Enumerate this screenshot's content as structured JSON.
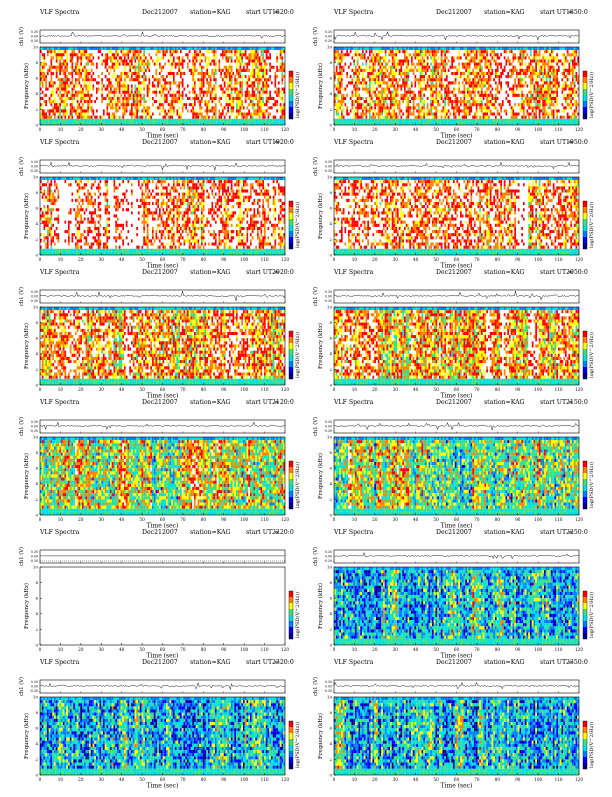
{
  "common": {
    "title": "VLF Spectra",
    "date": "Dec212007",
    "station": "station=KAG",
    "start_prefix": "start  UT =",
    "xlabel": "Time  (sec)",
    "ylabel_freq": "Frequency  (kHz)",
    "ylabel_ch": "ch1 (V)",
    "colorbar_label": "log(PSD(V^2/Hz))",
    "x_ticks": [
      0,
      10,
      20,
      30,
      40,
      50,
      60,
      70,
      80,
      90,
      100,
      110,
      120
    ],
    "y_ticks": [
      0,
      2,
      4,
      6,
      8,
      10
    ],
    "ch_ticks": [
      "0.30",
      "0.00",
      "-0.30"
    ],
    "xlim": [
      0,
      120
    ],
    "ylim": [
      0,
      10
    ],
    "colormap": [
      "#000080",
      "#0000ff",
      "#0080ff",
      "#00e0e0",
      "#40e080",
      "#ffff00",
      "#ff8000",
      "#ff0000",
      "#ffffff"
    ]
  },
  "chart_data": [
    {
      "type": "heatmap",
      "start_ut": "1820:0",
      "has_data": true,
      "intensity": 0.85
    },
    {
      "type": "heatmap",
      "start_ut": "1850:0",
      "has_data": true,
      "intensity": 0.82
    },
    {
      "type": "heatmap",
      "start_ut": "1920:0",
      "has_data": true,
      "intensity": 0.92
    },
    {
      "type": "heatmap",
      "start_ut": "1950:0",
      "has_data": true,
      "intensity": 0.9
    },
    {
      "type": "heatmap",
      "start_ut": "2020:0",
      "has_data": true,
      "intensity": 0.78
    },
    {
      "type": "heatmap",
      "start_ut": "2050:0",
      "has_data": true,
      "intensity": 0.75
    },
    {
      "type": "heatmap",
      "start_ut": "2120:0",
      "has_data": true,
      "intensity": 0.55
    },
    {
      "type": "heatmap",
      "start_ut": "2150:0",
      "has_data": true,
      "intensity": 0.5
    },
    {
      "type": "heatmap",
      "start_ut": "2220:0",
      "has_data": false,
      "intensity": 0
    },
    {
      "type": "heatmap",
      "start_ut": "2250:0",
      "has_data": true,
      "intensity": 0.3
    },
    {
      "type": "heatmap",
      "start_ut": "2320:0",
      "has_data": true,
      "intensity": 0.28
    },
    {
      "type": "heatmap",
      "start_ut": "2350:0",
      "has_data": true,
      "intensity": 0.33
    }
  ]
}
